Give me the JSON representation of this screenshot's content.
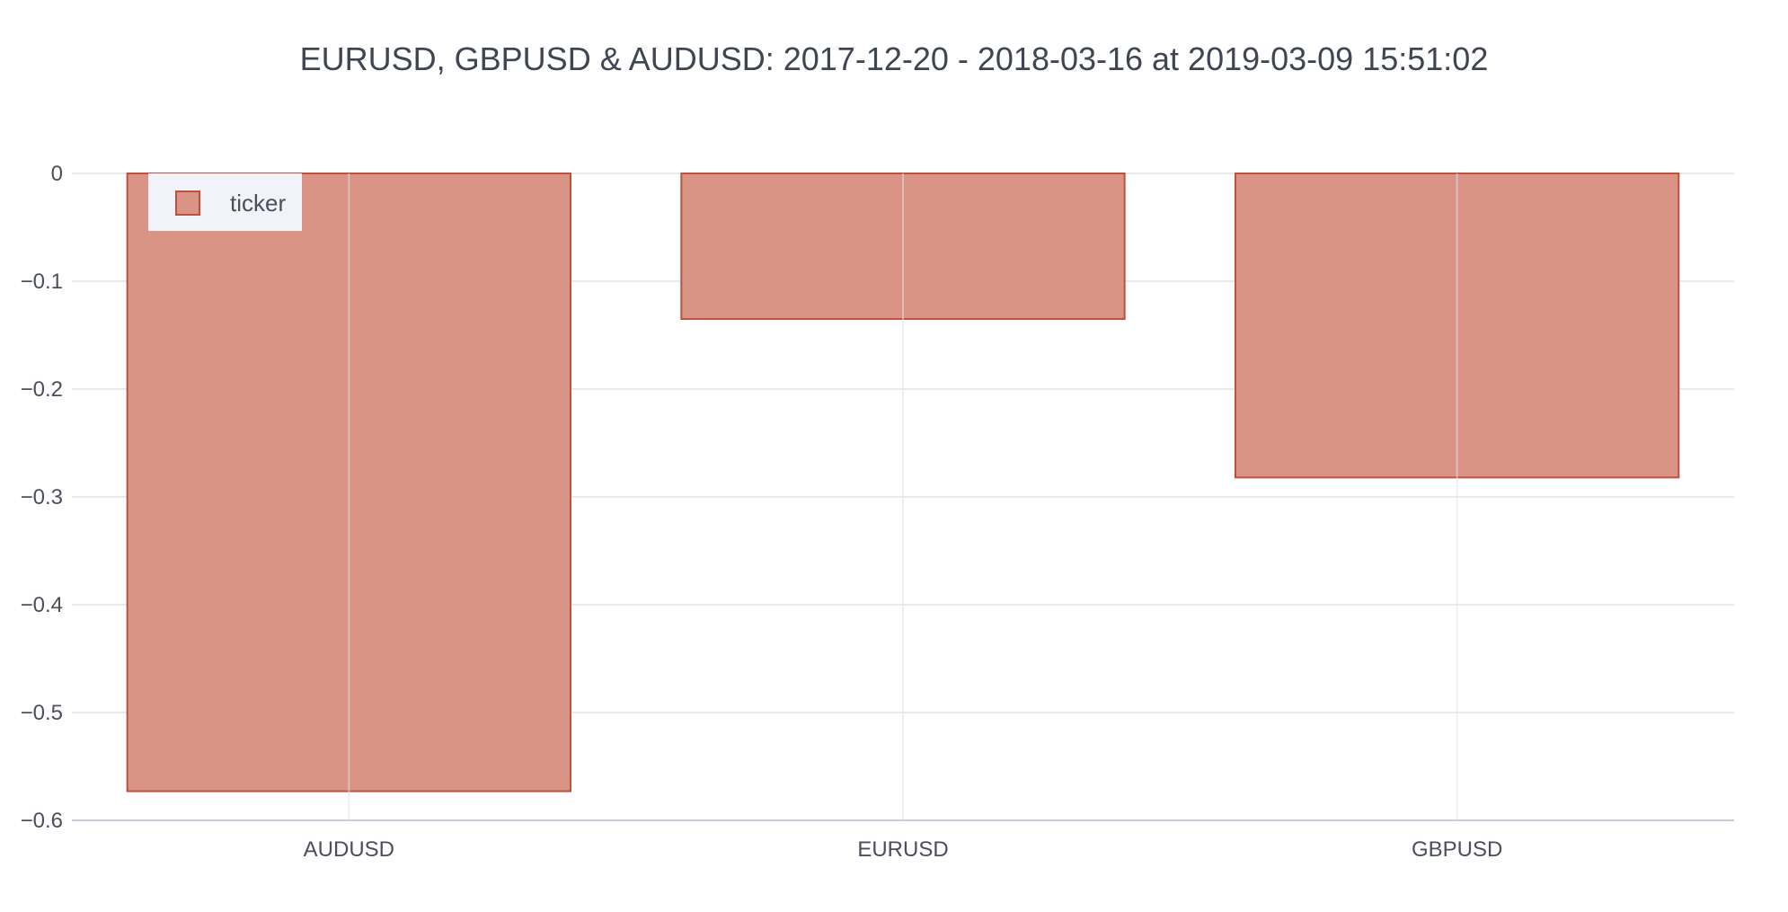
{
  "chart_data": {
    "type": "bar",
    "title": "EURUSD, GBPUSD & AUDUSD: 2017-12-20 - 2018-03-16 at 2019-03-09 15:51:02",
    "xlabel": "",
    "ylabel": "",
    "categories": [
      "AUDUSD",
      "EURUSD",
      "GBPUSD"
    ],
    "series": [
      {
        "name": "ticker",
        "values": [
          -0.573,
          -0.135,
          -0.282
        ]
      }
    ],
    "ylim": [
      -0.6,
      0
    ],
    "yticks": [
      0,
      -0.1,
      -0.2,
      -0.3,
      -0.4,
      -0.5,
      -0.6
    ],
    "ytick_labels": [
      "0",
      "−0.1",
      "−0.2",
      "−0.3",
      "−0.4",
      "−0.5",
      "−0.6"
    ],
    "grid": true,
    "legend_position": "top-left",
    "colors": {
      "bar_fill": "#d99486",
      "bar_stroke": "#c0503e",
      "grid": "#dfe2ea",
      "axis": "#c9ccd6",
      "legend_bg": "#f1f3f8"
    }
  }
}
